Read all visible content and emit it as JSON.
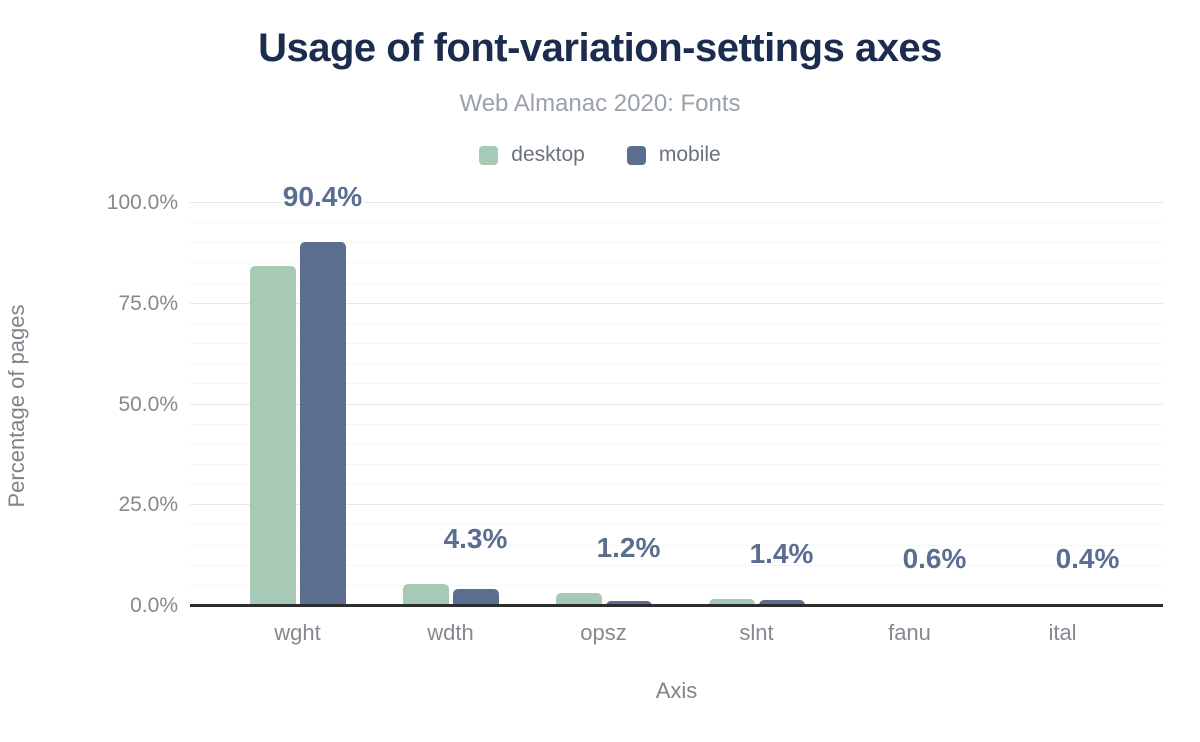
{
  "chart_data": {
    "type": "bar",
    "title": "Usage of font-variation-settings axes",
    "subtitle": "Web Almanac 2020: Fonts",
    "categories": [
      "wght",
      "wdth",
      "opsz",
      "slnt",
      "fanu",
      "ital"
    ],
    "series": [
      {
        "name": "desktop",
        "color": "#a6cab6",
        "values": [
          84.4,
          5.4,
          3.3,
          1.7,
          0.5,
          0.6
        ]
      },
      {
        "name": "mobile",
        "color": "#5b6e90",
        "values": [
          90.4,
          4.3,
          1.2,
          1.4,
          0.6,
          0.4
        ]
      }
    ],
    "bar_labels": [
      "90.4%",
      "4.3%",
      "1.2%",
      "1.4%",
      "0.6%",
      "0.4%"
    ],
    "bar_labels_series": "mobile",
    "xlabel": "Axis",
    "ylabel": "Percentage of pages",
    "yticks": [
      {
        "value": 0,
        "label": "0.0%"
      },
      {
        "value": 25,
        "label": "25.0%"
      },
      {
        "value": 50,
        "label": "50.0%"
      },
      {
        "value": 75,
        "label": "75.0%"
      },
      {
        "value": 100,
        "label": "100.0%"
      }
    ],
    "ylim": [
      0,
      100
    ],
    "grid": {
      "show": true,
      "minor_step": 5,
      "major_step": 25
    },
    "legend_position": "top",
    "colors": {
      "title": "#1b2c4e",
      "subtitle": "#9aa1a8",
      "tick_label": "#85898f",
      "axis_title": "#7f848c",
      "data_label": "#5b6e91",
      "axis_line": "#2d2d2d",
      "grid_minor": "#f5f5f5",
      "grid_major": "#e7e7e7",
      "background": "#ffffff"
    }
  }
}
